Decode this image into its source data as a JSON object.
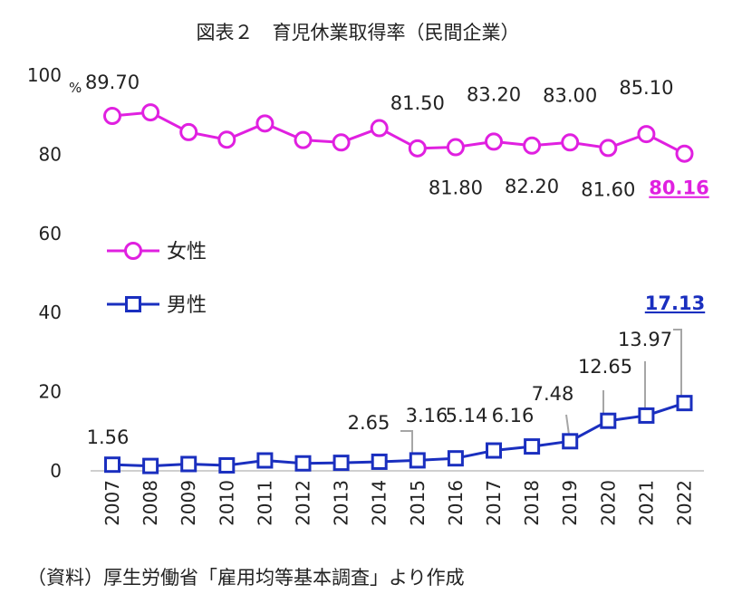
{
  "title": "図表２　育児休業取得率（民間企業）",
  "source": "（資料）厚生労働省「雇用均等基本調査」より作成",
  "colors": {
    "female": "#e020e0",
    "male": "#1a2fbf",
    "axis": "#bfbfbf",
    "leader": "#a6a6a6"
  },
  "chart_data": {
    "type": "line",
    "categories": [
      "2007",
      "2008",
      "2009",
      "2010",
      "2011",
      "2012",
      "2013",
      "2014",
      "2015",
      "2016",
      "2017",
      "2018",
      "2019",
      "2020",
      "2021",
      "2022"
    ],
    "ylim": [
      0,
      100
    ],
    "yticks": [
      "0",
      "20",
      "40",
      "60",
      "80",
      "100"
    ],
    "yunit": "%",
    "grid": false,
    "legend_position": "left-middle",
    "series": [
      {
        "name": "女性",
        "marker": "circle",
        "values": [
          89.7,
          90.6,
          85.6,
          83.7,
          87.8,
          83.6,
          83.0,
          86.6,
          81.5,
          81.8,
          83.2,
          82.2,
          83.0,
          81.6,
          85.1,
          80.16
        ],
        "data_labels": [
          {
            "index": 0,
            "text": "89.70"
          },
          {
            "index": 8,
            "text": "81.50"
          },
          {
            "index": 9,
            "text": "81.80"
          },
          {
            "index": 10,
            "text": "83.20"
          },
          {
            "index": 11,
            "text": "82.20"
          },
          {
            "index": 12,
            "text": "83.00"
          },
          {
            "index": 13,
            "text": "81.60"
          },
          {
            "index": 14,
            "text": "85.10"
          },
          {
            "index": 15,
            "text": "80.16",
            "highlight": true
          }
        ]
      },
      {
        "name": "男性",
        "marker": "square",
        "values": [
          1.56,
          1.23,
          1.72,
          1.38,
          2.63,
          1.89,
          2.03,
          2.3,
          2.65,
          3.16,
          5.14,
          6.16,
          7.48,
          12.65,
          13.97,
          17.13
        ],
        "data_labels": [
          {
            "index": 0,
            "text": "1.56"
          },
          {
            "index": 8,
            "text": "2.65"
          },
          {
            "index": 9,
            "text": "3.16"
          },
          {
            "index": 10,
            "text": "5.14"
          },
          {
            "index": 11,
            "text": "6.16"
          },
          {
            "index": 12,
            "text": "7.48"
          },
          {
            "index": 13,
            "text": "12.65"
          },
          {
            "index": 14,
            "text": "13.97"
          },
          {
            "index": 15,
            "text": "17.13",
            "highlight": true
          }
        ]
      }
    ]
  }
}
